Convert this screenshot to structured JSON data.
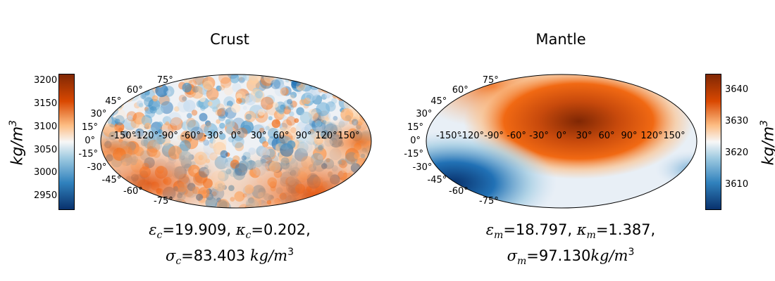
{
  "chart_data": [
    {
      "type": "heatmap",
      "projection": "mollweide",
      "title": "Crust",
      "colorbar": {
        "label": "kg/m3",
        "ticks": [
          "3200",
          "3150",
          "3100",
          "3050",
          "3000",
          "2950"
        ],
        "range": [
          2920,
          3215
        ],
        "side": "left",
        "cmap": {
          "low": "#08306b",
          "mid": "#f7f7f7",
          "high": "#7f2704"
        }
      },
      "lat_labels": [
        "75°",
        "60°",
        "45°",
        "30°",
        "15°",
        "0°",
        "-15°",
        "-30°",
        "-45°",
        "-60°",
        "-75°"
      ],
      "lon_labels": [
        "-150°",
        "-120°",
        "-90°",
        "-60°",
        "-30°",
        "0°",
        "30°",
        "60°",
        "90°",
        "120°",
        "150°"
      ],
      "caption": {
        "line1": {
          "eps": "ε",
          "eps_sub": "c",
          "eps_val": "=19.909, ",
          "kap": "κ",
          "kap_sub": "c",
          "kap_val": "=0.202,"
        },
        "line2": {
          "sig": "σ",
          "sig_sub": "c",
          "sig_val": "=83.403 ",
          "unit": "kg/m",
          "unit_sup": "3"
        }
      }
    },
    {
      "type": "heatmap",
      "projection": "mollweide",
      "title": "Mantle",
      "colorbar": {
        "label": "kg/m3",
        "ticks": [
          "3640",
          "3630",
          "3620",
          "3610"
        ],
        "range": [
          3602,
          3645
        ],
        "side": "right",
        "cmap": {
          "low": "#08306b",
          "mid": "#f7f7f7",
          "high": "#7f2704"
        }
      },
      "lat_labels": [
        "75°",
        "60°",
        "45°",
        "30°",
        "15°",
        "0°",
        "-15°",
        "-30°",
        "-45°",
        "-60°",
        "-75°"
      ],
      "lon_labels": [
        "-150°",
        "-120°",
        "-90°",
        "-60°",
        "-30°",
        "0°",
        "30°",
        "60°",
        "90°",
        "120°",
        "150°"
      ],
      "caption": {
        "line1": {
          "eps": "ε",
          "eps_sub": "m",
          "eps_val": "=18.797, ",
          "kap": "κ",
          "kap_sub": "m",
          "kap_val": "=1.387,"
        },
        "line2": {
          "sig": "σ",
          "sig_sub": "m",
          "sig_val": "=97.130",
          "unit": "kg/m",
          "unit_sup": "3"
        }
      }
    }
  ]
}
